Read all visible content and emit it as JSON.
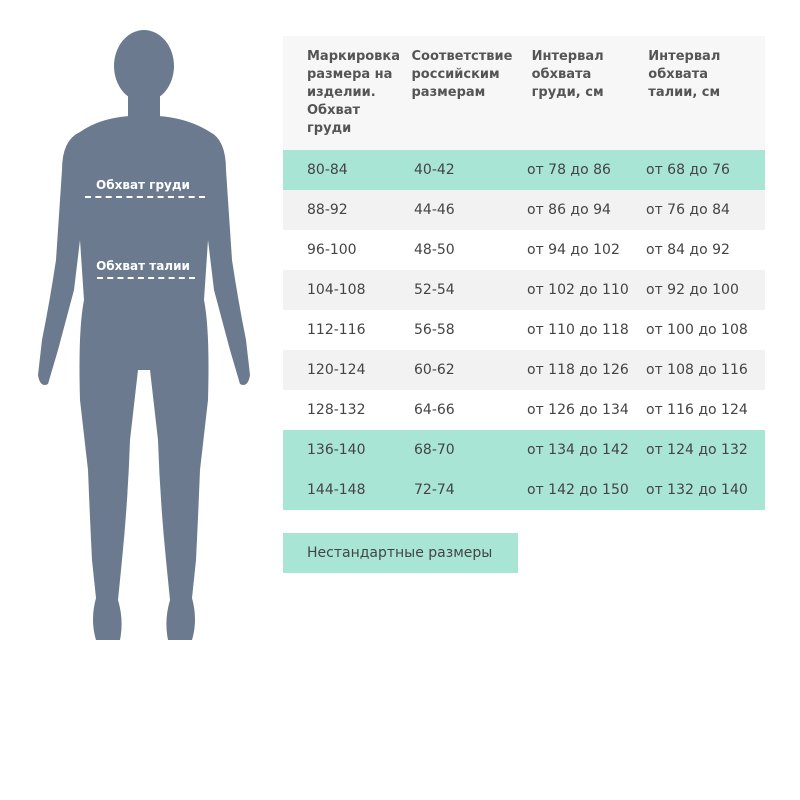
{
  "figure": {
    "chest_label": "Обхват груди",
    "waist_label": "Обхват талии",
    "body_color": "#6b7a8f"
  },
  "table": {
    "headers": [
      "Маркировка размера на изделии. Обхват груди",
      "Соответствие российским размерам",
      "Интервал обхвата груди, см",
      "Интервал обхвата талии, см"
    ],
    "rows": [
      {
        "cells": [
          "80-84",
          "40-42",
          "от 78 до 86",
          "от 68 до 76"
        ],
        "bg": "#a9e5d5"
      },
      {
        "cells": [
          "88-92",
          "44-46",
          "от 86 до 94",
          "от 76 до 84"
        ],
        "bg": "#f2f2f2"
      },
      {
        "cells": [
          "96-100",
          "48-50",
          "от 94 до 102",
          "от 84 до 92"
        ],
        "bg": "#ffffff"
      },
      {
        "cells": [
          "104-108",
          "52-54",
          "от 102 до 110",
          "от 92 до 100"
        ],
        "bg": "#f2f2f2"
      },
      {
        "cells": [
          "112-116",
          "56-58",
          "от 110 до 118",
          "от 100 до 108"
        ],
        "bg": "#ffffff"
      },
      {
        "cells": [
          "120-124",
          "60-62",
          "от 118 до 126",
          "от 108 до 116"
        ],
        "bg": "#f2f2f2"
      },
      {
        "cells": [
          "128-132",
          "64-66",
          "от 126 до 134",
          "от 116 до 124"
        ],
        "bg": "#ffffff"
      },
      {
        "cells": [
          "136-140",
          "68-70",
          "от 134 до 142",
          "от 124 до 132"
        ],
        "bg": "#a9e5d5"
      },
      {
        "cells": [
          "144-148",
          "72-74",
          "от 142 до 150",
          "от 132 до 140"
        ],
        "bg": "#a9e5d5"
      }
    ]
  },
  "button": {
    "label": "Нестандартные размеры"
  }
}
